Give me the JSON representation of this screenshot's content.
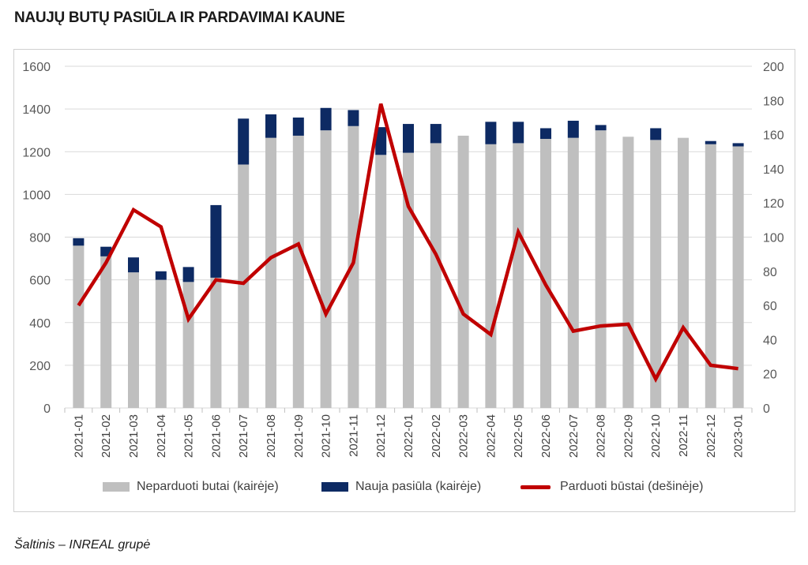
{
  "title": "NAUJŲ BUTŲ PASIŪLA IR PARDAVIMAI KAUNE",
  "source": "Šaltinis – INREAL grupė",
  "colors": {
    "unsold": "#bfbfbf",
    "new_supply": "#0d2a63",
    "sold": "#c00000",
    "grid": "#d9d9d9"
  },
  "chart_data": {
    "type": "bar",
    "stacked": true,
    "categories": [
      "2021-01",
      "2021-02",
      "2021-03",
      "2021-04",
      "2021-05",
      "2021-06",
      "2021-07",
      "2021-08",
      "2021-09",
      "2021-10",
      "2021-11",
      "2021-12",
      "2022-01",
      "2022-02",
      "2022-03",
      "2022-04",
      "2022-05",
      "2022-06",
      "2022-07",
      "2022-08",
      "2022-09",
      "2022-10",
      "2022-11",
      "2022-12",
      "2023-01"
    ],
    "series": [
      {
        "name": "Neparduoti butai (kairėje)",
        "type": "bar",
        "axis": "left",
        "values": [
          760,
          710,
          635,
          600,
          590,
          610,
          1140,
          1265,
          1275,
          1300,
          1320,
          1185,
          1195,
          1240,
          1275,
          1235,
          1240,
          1260,
          1265,
          1300,
          1270,
          1255,
          1265,
          1235,
          1225
        ]
      },
      {
        "name": "Nauja pasiūla (kairėje)",
        "type": "bar",
        "axis": "left",
        "values": [
          35,
          45,
          70,
          40,
          70,
          340,
          215,
          110,
          85,
          105,
          75,
          130,
          135,
          90,
          0,
          105,
          100,
          50,
          80,
          25,
          0,
          55,
          0,
          15,
          15
        ]
      },
      {
        "name": "Parduoti būstai (dešinėje)",
        "type": "line",
        "axis": "right",
        "values": [
          60,
          85,
          116,
          106,
          52,
          75,
          73,
          88,
          96,
          55,
          85,
          178,
          118,
          90,
          55,
          43,
          103,
          72,
          45,
          48,
          49,
          17,
          47,
          25,
          23
        ]
      }
    ],
    "y_left": {
      "min": 0,
      "max": 1600,
      "ticks": [
        "0",
        "200",
        "400",
        "600",
        "800",
        "1000",
        "1200",
        "1400",
        "1600"
      ]
    },
    "y_right": {
      "min": 0,
      "max": 200,
      "ticks": [
        "0",
        "20",
        "40",
        "60",
        "80",
        "100",
        "120",
        "140",
        "160",
        "180",
        "200"
      ]
    },
    "grid": true,
    "legend_position": "bottom"
  }
}
